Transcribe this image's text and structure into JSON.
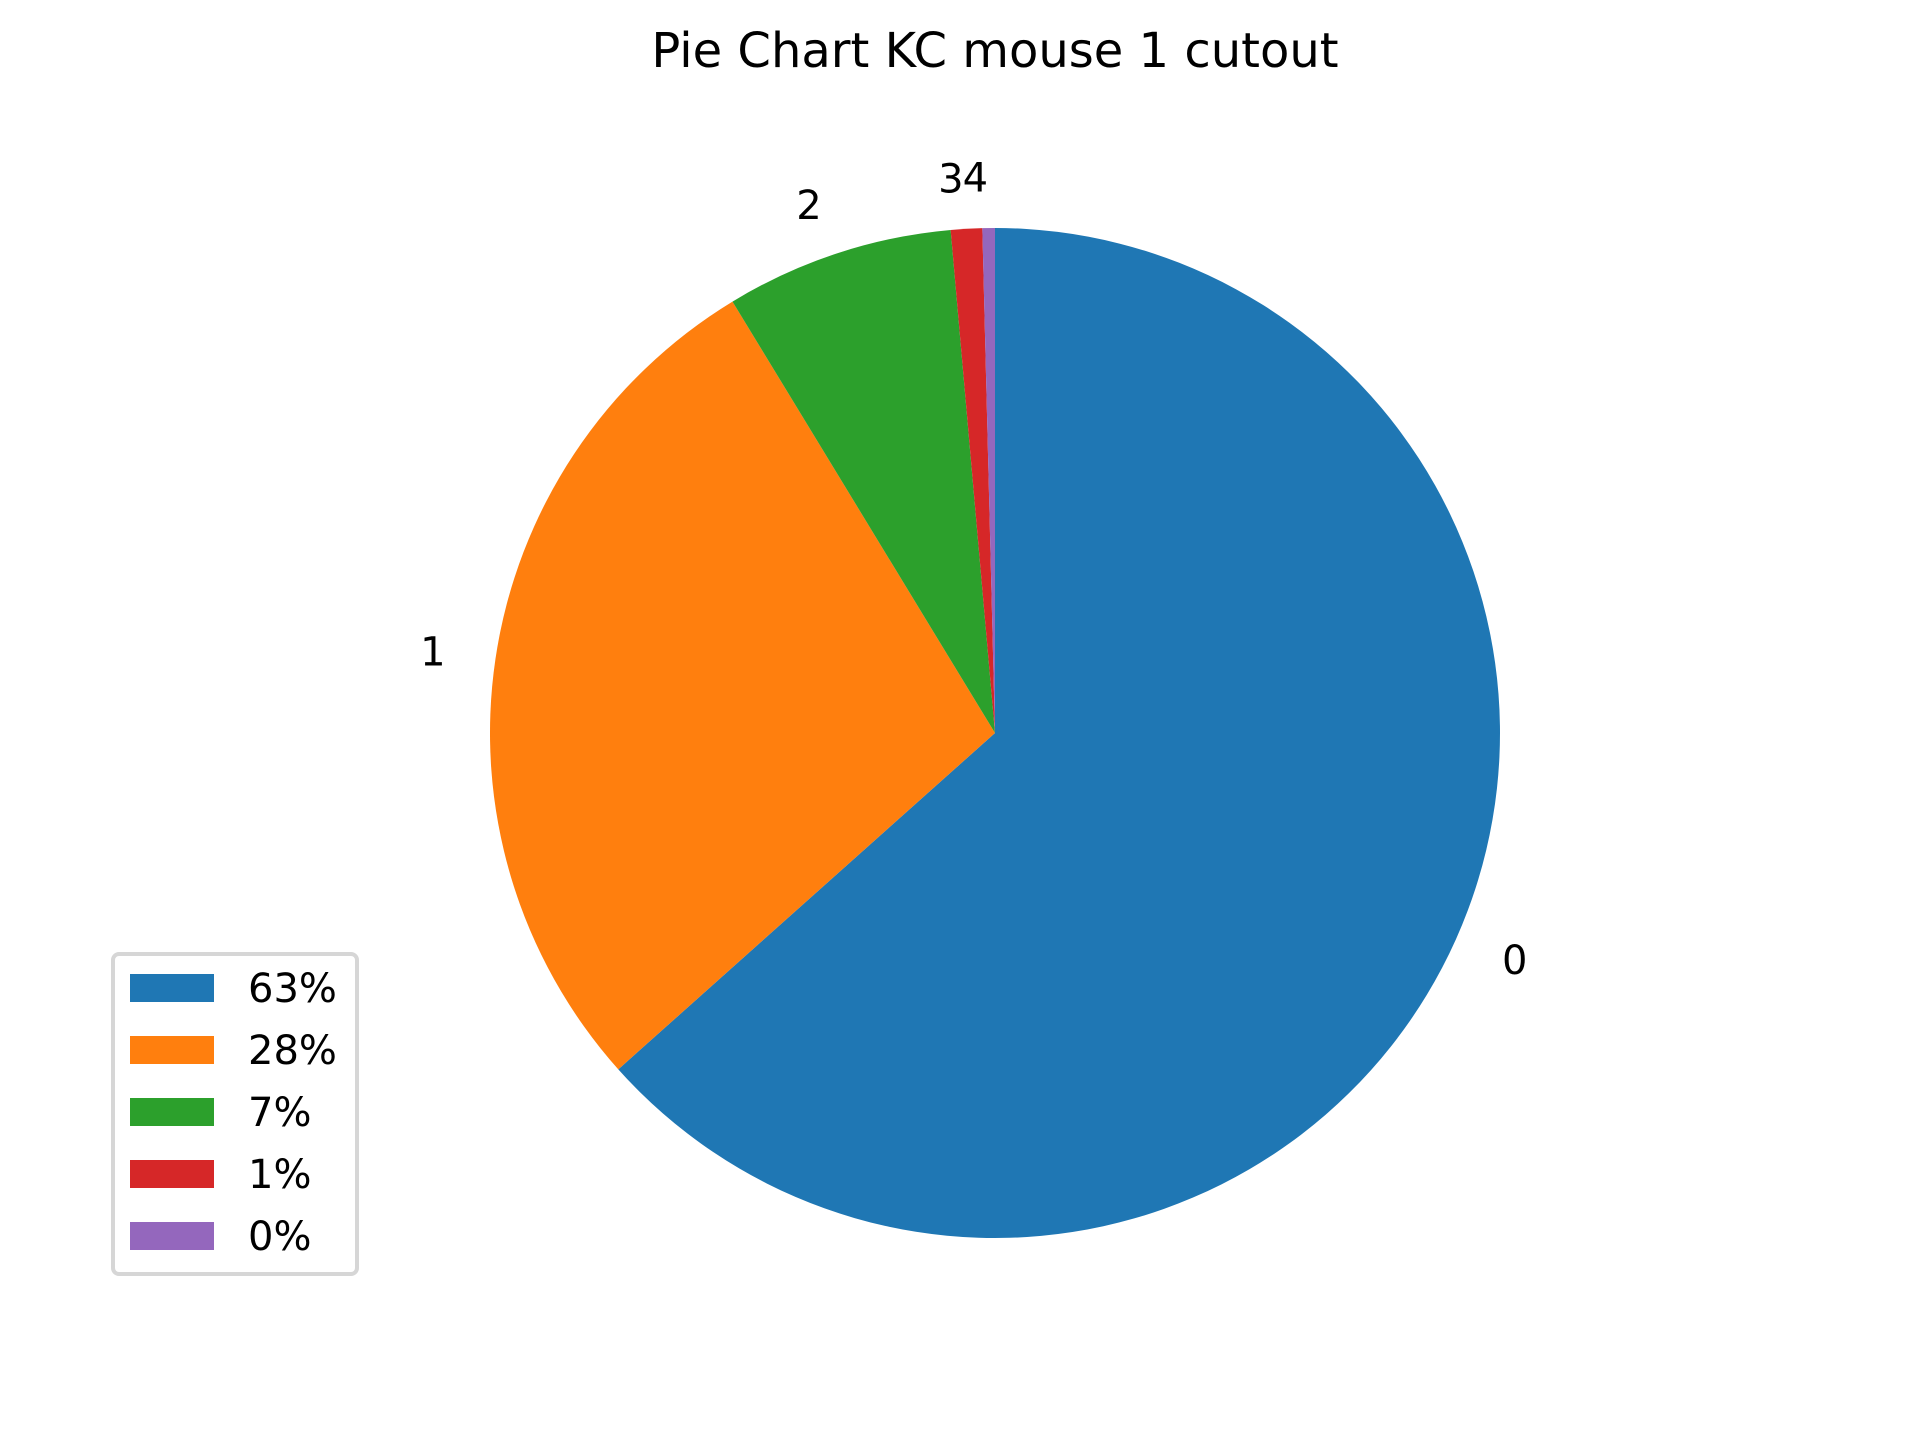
{
  "chart_data": {
    "type": "pie",
    "title": "Pie Chart KC mouse 1 cutout",
    "start_angle_deg": 90,
    "direction": "clockwise",
    "slices": [
      {
        "label": "0",
        "value": 63.4,
        "color": "#1f77b4",
        "legend": "63%"
      },
      {
        "label": "1",
        "value": 27.9,
        "color": "#ff7f0e",
        "legend": "28%"
      },
      {
        "label": "2",
        "value": 7.3,
        "color": "#2ca02c",
        "legend": "7%"
      },
      {
        "label": "3",
        "value": 1.0,
        "color": "#d62728",
        "legend": "1%"
      },
      {
        "label": "4",
        "value": 0.4,
        "color": "#9467bd",
        "legend": "0%"
      }
    ],
    "legend_position": "lower-left"
  }
}
